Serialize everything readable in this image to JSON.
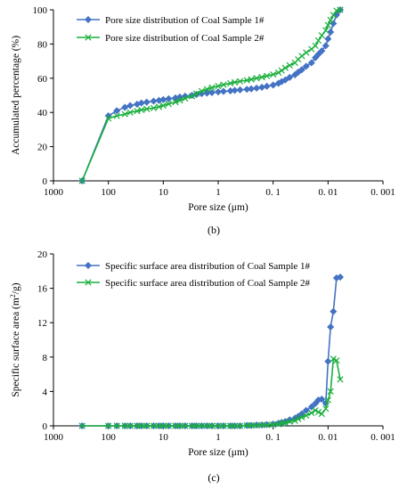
{
  "chart_data": [
    {
      "type": "line",
      "caption": "(b)",
      "xlabel": "Pore size (μm)",
      "ylabel": "Accumulated percentage (%)",
      "x_scale": "log",
      "x_reversed": true,
      "xlim": [
        1000,
        0.001
      ],
      "ylim": [
        0,
        100
      ],
      "x_ticks": [
        1000,
        100,
        10,
        1,
        0.1,
        0.01,
        0.001
      ],
      "x_tick_labels": [
        "1000",
        "100",
        "10",
        "1",
        "0. 1",
        "0. 01",
        "0. 001"
      ],
      "y_ticks": [
        0,
        20,
        40,
        60,
        80,
        100
      ],
      "y_tick_labels": [
        "0",
        "20",
        "40",
        "60",
        "80",
        "100"
      ],
      "legend_position": "top-left",
      "series": [
        {
          "name": "Pore size distribution of Coal Sample 1#",
          "color": "#4472C4",
          "marker": "diamond",
          "x": [
            300,
            100,
            70,
            50,
            40,
            30,
            25,
            20,
            15,
            12,
            10,
            8,
            6,
            5,
            4,
            3,
            2.5,
            2,
            1.6,
            1.3,
            1,
            0.8,
            0.6,
            0.5,
            0.4,
            0.3,
            0.25,
            0.2,
            0.16,
            0.13,
            0.1,
            0.08,
            0.07,
            0.06,
            0.05,
            0.04,
            0.035,
            0.03,
            0.025,
            0.02,
            0.017,
            0.015,
            0.013,
            0.011,
            0.01,
            0.009,
            0.008,
            0.007,
            0.006
          ],
          "y": [
            0,
            38,
            41,
            43,
            44,
            44.8,
            45.5,
            46,
            46.6,
            47,
            47.5,
            48,
            48.5,
            49,
            49.5,
            50,
            50.5,
            51,
            51.3,
            51.6,
            52,
            52.3,
            52.6,
            52.9,
            53.2,
            53.5,
            53.8,
            54.2,
            54.7,
            55.3,
            56,
            57,
            58,
            59,
            60.5,
            62,
            63.5,
            65,
            67,
            69,
            72,
            74,
            76,
            79,
            83,
            87,
            92,
            97,
            101
          ]
        },
        {
          "name": "Pore size distribution of Coal Sample 2#",
          "color": "#1AAF3C",
          "marker": "x",
          "x": [
            300,
            100,
            70,
            50,
            40,
            30,
            25,
            20,
            15,
            12,
            10,
            8,
            6,
            5,
            4,
            3,
            2.5,
            2,
            1.6,
            1.3,
            1,
            0.8,
            0.6,
            0.5,
            0.4,
            0.3,
            0.25,
            0.2,
            0.16,
            0.13,
            0.1,
            0.08,
            0.07,
            0.06,
            0.05,
            0.04,
            0.035,
            0.03,
            0.025,
            0.02,
            0.017,
            0.015,
            0.013,
            0.011,
            0.01,
            0.009,
            0.008,
            0.007,
            0.006
          ],
          "y": [
            0,
            36.5,
            38,
            39,
            40,
            40.8,
            41.5,
            42,
            42.6,
            43.3,
            44,
            45,
            46,
            47,
            48.2,
            49.5,
            51,
            52.5,
            53.6,
            54.5,
            55.4,
            56.2,
            57,
            57.6,
            58.2,
            58.8,
            59.3,
            60,
            60.6,
            61.3,
            62.2,
            63.3,
            64.5,
            66,
            67.5,
            69,
            71,
            73,
            75,
            77,
            79,
            82,
            85,
            88,
            91,
            94,
            97,
            99.5,
            101
          ]
        }
      ]
    },
    {
      "type": "line",
      "caption": "(c)",
      "xlabel": "Pore size (μm)",
      "ylabel": "Specific surface area (m²/g)",
      "x_scale": "log",
      "x_reversed": true,
      "xlim": [
        1000,
        0.001
      ],
      "ylim": [
        0,
        20
      ],
      "x_ticks": [
        1000,
        100,
        10,
        1,
        0.1,
        0.01,
        0.001
      ],
      "x_tick_labels": [
        "1000",
        "100",
        "10",
        "1",
        "0. 1",
        "0. 01",
        "0. 001"
      ],
      "y_ticks": [
        0,
        4,
        8,
        12,
        16,
        20
      ],
      "y_tick_labels": [
        "0",
        "4",
        "8",
        "12",
        "16",
        "20"
      ],
      "legend_position": "top-left",
      "series": [
        {
          "name": "Specific surface area distribution of Coal Sample 1#",
          "color": "#4472C4",
          "marker": "diamond",
          "x": [
            300,
            100,
            70,
            50,
            40,
            30,
            25,
            20,
            15,
            12,
            10,
            8,
            6,
            5,
            4,
            3,
            2.5,
            2,
            1.6,
            1.3,
            1,
            0.8,
            0.6,
            0.5,
            0.4,
            0.3,
            0.25,
            0.2,
            0.16,
            0.13,
            0.1,
            0.08,
            0.07,
            0.06,
            0.05,
            0.04,
            0.035,
            0.03,
            0.025,
            0.02,
            0.017,
            0.015,
            0.013,
            0.011,
            0.01,
            0.009,
            0.008,
            0.007,
            0.006
          ],
          "y": [
            0,
            0,
            0,
            0,
            0,
            0,
            0,
            0,
            0,
            0,
            0,
            0,
            0,
            0,
            0,
            0,
            0,
            0,
            0,
            0,
            0,
            0,
            0,
            0,
            0,
            0.05,
            0.05,
            0.1,
            0.1,
            0.15,
            0.2,
            0.3,
            0.4,
            0.5,
            0.7,
            0.9,
            1.1,
            1.4,
            1.8,
            2.2,
            2.6,
            3.0,
            3.1,
            2.6,
            7.5,
            11.5,
            13.3,
            17.2,
            17.3
          ]
        },
        {
          "name": "Specific surface area distribution of Coal Sample 2#",
          "color": "#1AAF3C",
          "marker": "x",
          "x": [
            300,
            100,
            70,
            50,
            40,
            30,
            25,
            20,
            15,
            12,
            10,
            8,
            6,
            5,
            4,
            3,
            2.5,
            2,
            1.6,
            1.3,
            1,
            0.8,
            0.6,
            0.5,
            0.4,
            0.3,
            0.25,
            0.2,
            0.16,
            0.13,
            0.1,
            0.08,
            0.07,
            0.06,
            0.05,
            0.04,
            0.035,
            0.03,
            0.025,
            0.02,
            0.017,
            0.015,
            0.013,
            0.011,
            0.01,
            0.009,
            0.008,
            0.007,
            0.006
          ],
          "y": [
            0,
            0,
            0,
            0,
            0,
            0,
            0,
            0,
            0,
            0,
            0,
            0,
            0,
            0,
            0,
            0,
            0,
            0,
            0,
            0,
            0,
            0,
            0,
            0,
            0,
            0.05,
            0.05,
            0.05,
            0.1,
            0.1,
            0.15,
            0.2,
            0.3,
            0.35,
            0.5,
            0.6,
            0.8,
            1.0,
            1.2,
            1.5,
            1.8,
            1.6,
            1.4,
            2.0,
            3.0,
            4.0,
            7.8,
            7.6,
            5.4
          ]
        }
      ]
    }
  ]
}
